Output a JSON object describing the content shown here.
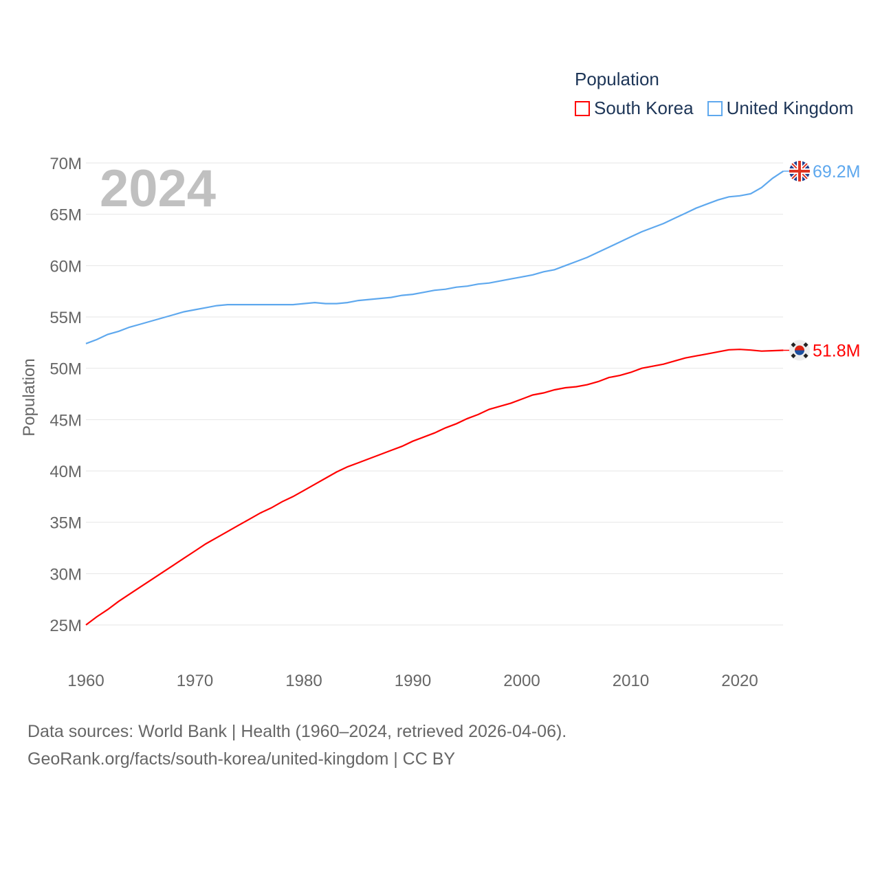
{
  "chart_data": {
    "type": "line",
    "title": "Population",
    "year_label": "2024",
    "xlabel": "",
    "ylabel": "Population",
    "xlim": [
      1960,
      2024
    ],
    "ylim": [
      25,
      70
    ],
    "x_ticks": [
      "1960",
      "1970",
      "1980",
      "1990",
      "2000",
      "2010",
      "2020"
    ],
    "y_ticks": [
      "25M",
      "30M",
      "35M",
      "40M",
      "45M",
      "50M",
      "55M",
      "60M",
      "65M",
      "70M"
    ],
    "grid": true,
    "legend_position": "top-right",
    "x_start": 1960,
    "series": [
      {
        "name": "South Korea",
        "color": "#ff0000",
        "end_label": "51.8M",
        "flag": "south-korea-flag",
        "values": [
          25.0,
          25.8,
          26.5,
          27.3,
          28.0,
          28.7,
          29.4,
          30.1,
          30.8,
          31.5,
          32.2,
          32.9,
          33.5,
          34.1,
          34.7,
          35.3,
          35.9,
          36.4,
          37.0,
          37.5,
          38.1,
          38.7,
          39.3,
          39.9,
          40.4,
          40.8,
          41.2,
          41.6,
          42.0,
          42.4,
          42.9,
          43.3,
          43.7,
          44.2,
          44.6,
          45.1,
          45.5,
          46.0,
          46.3,
          46.6,
          47.0,
          47.4,
          47.6,
          47.9,
          48.1,
          48.2,
          48.4,
          48.7,
          49.1,
          49.3,
          49.6,
          50.0,
          50.2,
          50.4,
          50.7,
          51.0,
          51.2,
          51.4,
          51.6,
          51.8,
          51.84,
          51.77,
          51.67,
          51.71,
          51.75
        ]
      },
      {
        "name": "United Kingdom",
        "color": "#5ea8ee",
        "end_label": "69.2M",
        "flag": "uk-flag",
        "values": [
          52.4,
          52.8,
          53.3,
          53.6,
          54.0,
          54.3,
          54.6,
          54.9,
          55.2,
          55.5,
          55.7,
          55.9,
          56.1,
          56.2,
          56.2,
          56.2,
          56.2,
          56.2,
          56.2,
          56.2,
          56.3,
          56.4,
          56.3,
          56.3,
          56.4,
          56.6,
          56.7,
          56.8,
          56.9,
          57.1,
          57.2,
          57.4,
          57.6,
          57.7,
          57.9,
          58.0,
          58.2,
          58.3,
          58.5,
          58.7,
          58.9,
          59.1,
          59.4,
          59.6,
          60.0,
          60.4,
          60.8,
          61.3,
          61.8,
          62.3,
          62.8,
          63.3,
          63.7,
          64.1,
          64.6,
          65.1,
          65.6,
          66.0,
          66.4,
          66.7,
          66.8,
          67.0,
          67.6,
          68.5,
          69.2
        ]
      }
    ]
  },
  "footer": {
    "line1": "Data sources: World Bank | Health (1960–2024, retrieved 2026-04-06).",
    "line2": "GeoRank.org/facts/south-korea/united-kingdom | CC BY"
  }
}
